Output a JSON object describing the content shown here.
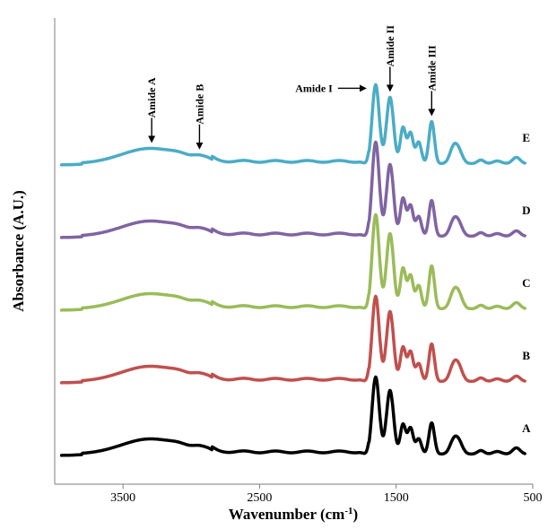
{
  "chart_data": {
    "type": "line",
    "title": "",
    "xlabel": "Wavenumber (cm",
    "xlabel_sup": "-1",
    "xlabel_suffix": ")",
    "ylabel": "Absorbance (A.U.)",
    "xlim": [
      4000,
      500
    ],
    "x_reversed": true,
    "xticks": [
      3500,
      2500,
      1500,
      500
    ],
    "xtick_labels": [
      "3500",
      "2500",
      "1500",
      "500"
    ],
    "grid": false,
    "y_axis_ticks": false,
    "series": [
      {
        "name": "A",
        "color": "#000000",
        "offset": 0,
        "peaks": [
          [
            1650,
            0.86
          ],
          [
            1545,
            0.71
          ],
          [
            1450,
            0.33
          ],
          [
            1395,
            0.29
          ],
          [
            1335,
            0.17
          ],
          [
            1240,
            0.35
          ],
          [
            1080,
            0.14
          ],
          [
            1040,
            0.12
          ],
          [
            620,
            0.07
          ]
        ]
      },
      {
        "name": "B",
        "color": "#c0504d",
        "offset": 1,
        "peaks": [
          [
            1650,
            0.95
          ],
          [
            1545,
            0.78
          ],
          [
            1450,
            0.38
          ],
          [
            1395,
            0.33
          ],
          [
            1335,
            0.2
          ],
          [
            1240,
            0.42
          ],
          [
            1080,
            0.17
          ],
          [
            1040,
            0.14
          ],
          [
            620,
            0.06
          ]
        ]
      },
      {
        "name": "C",
        "color": "#9bbb59",
        "offset": 2,
        "peaks": [
          [
            1650,
            1.05
          ],
          [
            1545,
            0.84
          ],
          [
            1450,
            0.45
          ],
          [
            1395,
            0.37
          ],
          [
            1335,
            0.26
          ],
          [
            1240,
            0.48
          ],
          [
            1080,
            0.17
          ],
          [
            1040,
            0.14
          ],
          [
            620,
            0.07
          ]
        ]
      },
      {
        "name": "D",
        "color": "#8064a2",
        "offset": 3,
        "peaks": [
          [
            1650,
            1.05
          ],
          [
            1545,
            0.8
          ],
          [
            1450,
            0.42
          ],
          [
            1395,
            0.34
          ],
          [
            1335,
            0.22
          ],
          [
            1240,
            0.4
          ],
          [
            1080,
            0.16
          ],
          [
            1040,
            0.12
          ],
          [
            620,
            0.06
          ]
        ]
      },
      {
        "name": "E",
        "color": "#4bacc6",
        "offset": 4,
        "peaks": [
          [
            1650,
            0.88
          ],
          [
            1545,
            0.74
          ],
          [
            1450,
            0.4
          ],
          [
            1395,
            0.34
          ],
          [
            1335,
            0.24
          ],
          [
            1240,
            0.47
          ],
          [
            1080,
            0.17
          ],
          [
            1040,
            0.12
          ],
          [
            620,
            0.07
          ]
        ]
      }
    ],
    "amide_band": {
      "center": 3300,
      "height": 0.17
    },
    "annotations": [
      {
        "text": "Amide A",
        "x": 3290,
        "orientation": "vertical",
        "arrow": "down"
      },
      {
        "text": "Amide B",
        "x": 2940,
        "orientation": "vertical",
        "arrow": "down"
      },
      {
        "text": "Amide I",
        "x": 1650,
        "orientation": "horizontal",
        "arrow": "right"
      },
      {
        "text": "Amide II",
        "x": 1545,
        "orientation": "vertical",
        "arrow": "down"
      },
      {
        "text": "Amide III",
        "x": 1240,
        "orientation": "vertical",
        "arrow": "down"
      }
    ]
  }
}
